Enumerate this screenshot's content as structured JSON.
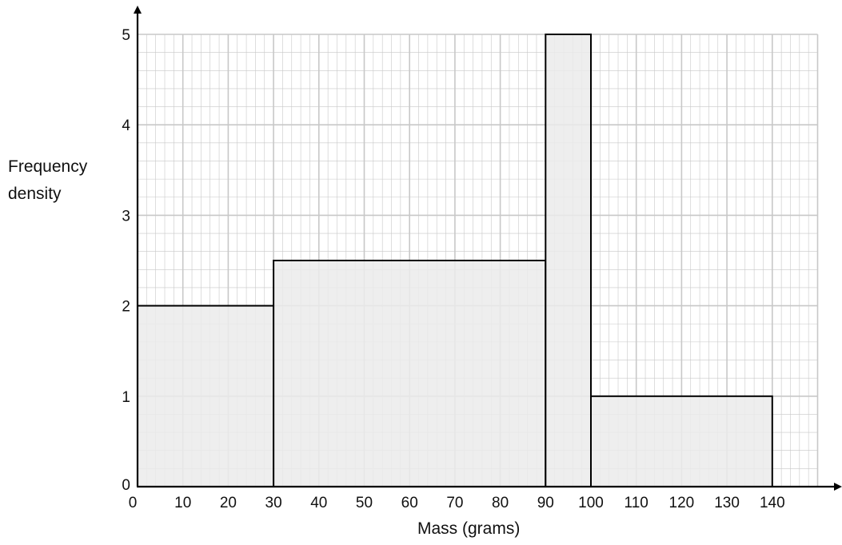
{
  "chart_data": {
    "type": "bar",
    "subtype": "histogram",
    "bins": [
      {
        "start": 0,
        "end": 30,
        "frequency_density": 2
      },
      {
        "start": 30,
        "end": 90,
        "frequency_density": 2.5
      },
      {
        "start": 90,
        "end": 100,
        "frequency_density": 5
      },
      {
        "start": 100,
        "end": 140,
        "frequency_density": 1
      }
    ],
    "ylabel_lines": [
      "Frequency",
      "density"
    ],
    "xlabel": "Mass (grams)",
    "xticks": [
      0,
      10,
      20,
      30,
      40,
      50,
      60,
      70,
      80,
      90,
      100,
      110,
      120,
      130,
      140
    ],
    "yticks": [
      0,
      1,
      2,
      3,
      4,
      5
    ],
    "xlim": [
      0,
      150
    ],
    "ylim": [
      0,
      5
    ],
    "grid": "on (major every 10 g / 1 unit, minor every 2 g / 0.2 units)",
    "bar_fill": "#ebebeb",
    "bar_stroke": "#000000",
    "grid_color": "#c8c8c8"
  }
}
